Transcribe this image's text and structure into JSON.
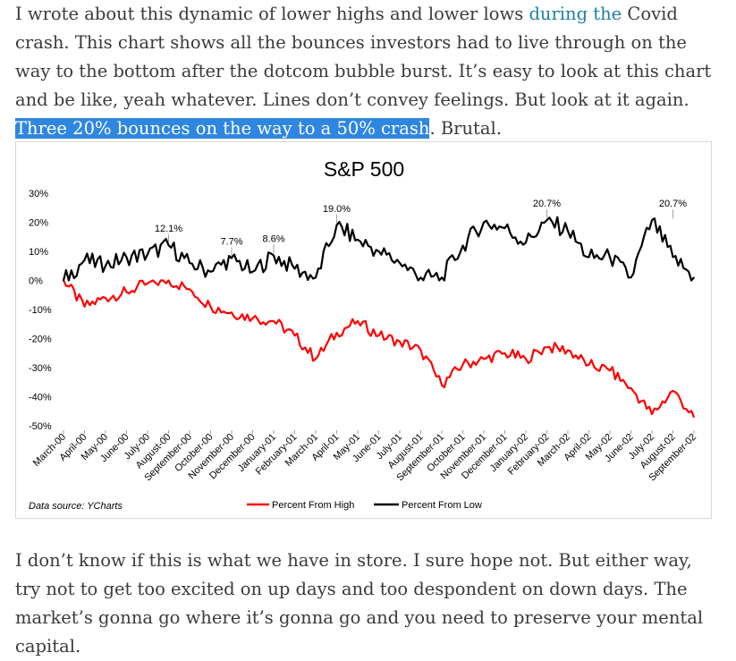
{
  "article": {
    "p1_seg1": "I wrote about this dynamic of lower highs and lower lows ",
    "p1_link": "during the",
    "p1_seg2": " Covid crash. This chart shows all the bounces investors had to live through on the way to the bottom after the dotcom bubble burst. It’s easy to look at this chart and be like, yeah whatever. Lines don’t convey feelings. But look at it again. ",
    "p1_highlight": "Three 20% bounces on the way to a 50% crash",
    "p1_seg3": ". Brutal.",
    "p2": "I don’t know if this is what we have in store. I sure hope not. But either way, try not to get too excited on up days and too despondent on down days. The market’s gonna go where it’s gonna go and you need to preserve your mental capital."
  },
  "colors": {
    "percent_from_high": "#ff0000",
    "percent_from_low": "#000000",
    "link": "#1d7ea3",
    "highlight": "#2f86e0"
  },
  "chart_data": {
    "type": "line",
    "title": "S&P 500",
    "source_note": "Data source: YCharts",
    "ylim": [
      -50,
      30
    ],
    "y_ticks": [
      "30%",
      "20%",
      "10%",
      "0%",
      "-10%",
      "-20%",
      "-30%",
      "-40%",
      "-50%"
    ],
    "y_tick_values": [
      30,
      20,
      10,
      0,
      -10,
      -20,
      -30,
      -40,
      -50
    ],
    "categories": [
      "March-00",
      "April-00",
      "May-00",
      "June-00",
      "July-00",
      "August-00",
      "September-00",
      "October-00",
      "November-00",
      "December-00",
      "January-01",
      "February-01",
      "March-01",
      "April-01",
      "May-01",
      "June-01",
      "July-01",
      "August-01",
      "September-01",
      "October-01",
      "November-01",
      "December-01",
      "January-02",
      "February-02",
      "March-02",
      "April-02",
      "May-02",
      "June-02",
      "July-02",
      "August-02",
      "September-02"
    ],
    "legend_position": "bottom",
    "grid": false,
    "series": [
      {
        "name": "Percent From High",
        "values": [
          0,
          -9,
          -6,
          -4,
          -1,
          0,
          -3,
          -9,
          -11,
          -13,
          -14,
          -19,
          -27,
          -18,
          -14,
          -19,
          -21,
          -24,
          -36,
          -29,
          -27,
          -25,
          -27,
          -23,
          -24,
          -29,
          -31,
          -37,
          -46,
          -38,
          -47
        ]
      },
      {
        "name": "Percent From Low",
        "values": [
          0,
          7,
          5,
          8,
          9,
          12.1,
          6,
          3,
          7.7,
          3,
          8.6,
          4,
          1,
          19.0,
          14,
          10,
          6,
          1,
          1,
          12,
          20,
          18,
          13,
          20.7,
          17,
          8,
          8,
          1,
          20.7,
          8,
          1
        ]
      }
    ],
    "annotations": [
      {
        "label": "12.1%",
        "category": "August-00",
        "value": 12.1
      },
      {
        "label": "7.7%",
        "category": "November-00",
        "value": 7.7
      },
      {
        "label": "8.6%",
        "category": "January-01",
        "value": 8.6
      },
      {
        "label": "19.0%",
        "category": "April-01",
        "value": 19.0
      },
      {
        "label": "20.7%",
        "category": "February-02",
        "value": 20.7
      },
      {
        "label": "20.7%",
        "category": "August-02",
        "value": 20.7
      }
    ]
  }
}
